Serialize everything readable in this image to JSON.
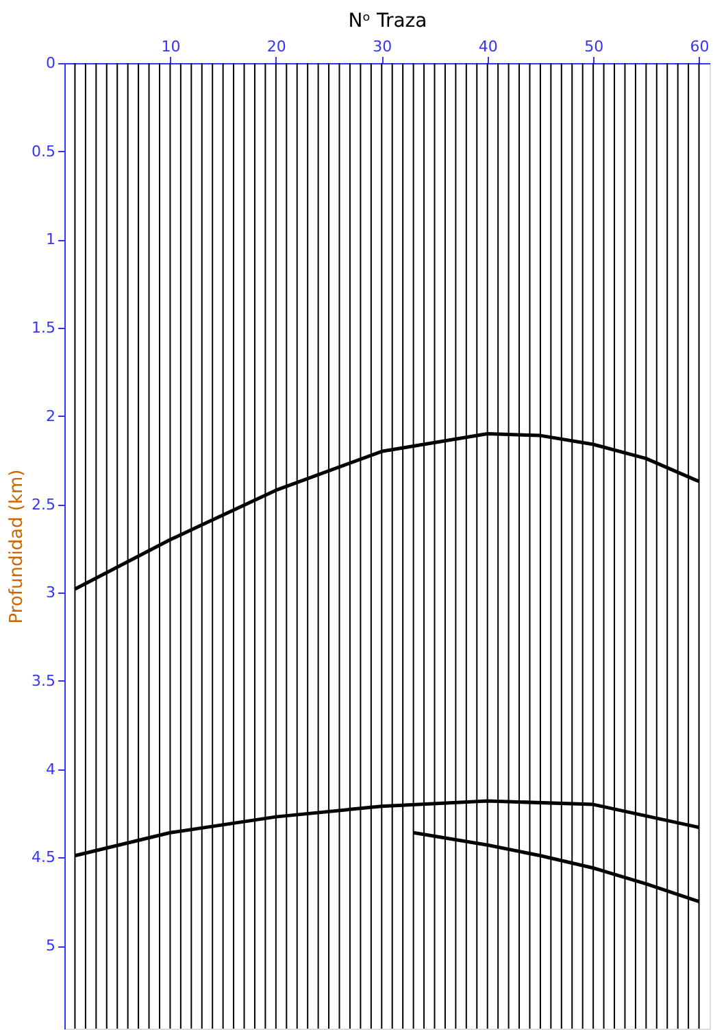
{
  "chart_data": {
    "type": "line",
    "xlabel": "Nᵒ Traza",
    "ylabel": "Profundidad (km)",
    "xlim": [
      0,
      61
    ],
    "xticks": [
      10,
      20,
      30,
      40,
      50,
      60
    ],
    "ylim": [
      5.47,
      0
    ],
    "yticks": [
      0,
      0.5,
      1,
      1.5,
      2,
      2.5,
      3,
      3.5,
      4,
      4.5,
      5
    ],
    "grid": false,
    "legend": false,
    "marker": "none",
    "line_style": "solid",
    "series": [
      {
        "color": "#000000",
        "x": [
          1,
          10,
          20,
          30,
          40,
          45,
          50,
          55,
          60
        ],
        "values": [
          2.98,
          2.7,
          2.42,
          2.2,
          2.1,
          2.11,
          2.16,
          2.24,
          2.37
        ]
      },
      {
        "color": "#000000",
        "x": [
          1,
          10,
          20,
          30,
          40,
          50,
          60
        ],
        "values": [
          4.49,
          4.36,
          4.27,
          4.21,
          4.18,
          4.2,
          4.33
        ]
      },
      {
        "color": "#000000",
        "x": [
          33,
          40,
          45,
          50,
          55,
          60
        ],
        "values": [
          4.36,
          4.43,
          4.49,
          4.56,
          4.65,
          4.75
        ]
      }
    ],
    "ref_lines": [
      {
        "axis": "x",
        "value": 1,
        "color": "#000000"
      },
      {
        "axis": "x",
        "value": 2,
        "color": "#000000"
      },
      {
        "axis": "x",
        "value": 3,
        "color": "#000000"
      },
      {
        "axis": "x",
        "value": 4,
        "color": "#000000"
      },
      {
        "axis": "x",
        "value": 5,
        "color": "#000000"
      },
      {
        "axis": "x",
        "value": 6,
        "color": "#000000"
      },
      {
        "axis": "x",
        "value": 7,
        "color": "#000000"
      },
      {
        "axis": "x",
        "value": 8,
        "color": "#000000"
      },
      {
        "axis": "x",
        "value": 9,
        "color": "#000000"
      },
      {
        "axis": "x",
        "value": 10,
        "color": "#000000"
      },
      {
        "axis": "x",
        "value": 11,
        "color": "#000000"
      },
      {
        "axis": "x",
        "value": 12,
        "color": "#000000"
      },
      {
        "axis": "x",
        "value": 13,
        "color": "#000000"
      },
      {
        "axis": "x",
        "value": 14,
        "color": "#000000"
      },
      {
        "axis": "x",
        "value": 15,
        "color": "#000000"
      },
      {
        "axis": "x",
        "value": 16,
        "color": "#000000"
      },
      {
        "axis": "x",
        "value": 17,
        "color": "#000000"
      },
      {
        "axis": "x",
        "value": 18,
        "color": "#000000"
      },
      {
        "axis": "x",
        "value": 19,
        "color": "#000000"
      },
      {
        "axis": "x",
        "value": 20,
        "color": "#000000"
      },
      {
        "axis": "x",
        "value": 21,
        "color": "#000000"
      },
      {
        "axis": "x",
        "value": 22,
        "color": "#000000"
      },
      {
        "axis": "x",
        "value": 23,
        "color": "#000000"
      },
      {
        "axis": "x",
        "value": 24,
        "color": "#000000"
      },
      {
        "axis": "x",
        "value": 25,
        "color": "#000000"
      },
      {
        "axis": "x",
        "value": 26,
        "color": "#000000"
      },
      {
        "axis": "x",
        "value": 27,
        "color": "#000000"
      },
      {
        "axis": "x",
        "value": 28,
        "color": "#000000"
      },
      {
        "axis": "x",
        "value": 29,
        "color": "#000000"
      },
      {
        "axis": "x",
        "value": 30,
        "color": "#000000"
      },
      {
        "axis": "x",
        "value": 31,
        "color": "#000000"
      },
      {
        "axis": "x",
        "value": 32,
        "color": "#000000"
      },
      {
        "axis": "x",
        "value": 33,
        "color": "#000000"
      },
      {
        "axis": "x",
        "value": 34,
        "color": "#000000"
      },
      {
        "axis": "x",
        "value": 35,
        "color": "#000000"
      },
      {
        "axis": "x",
        "value": 36,
        "color": "#000000"
      },
      {
        "axis": "x",
        "value": 37,
        "color": "#000000"
      },
      {
        "axis": "x",
        "value": 38,
        "color": "#000000"
      },
      {
        "axis": "x",
        "value": 39,
        "color": "#000000"
      },
      {
        "axis": "x",
        "value": 40,
        "color": "#000000"
      },
      {
        "axis": "x",
        "value": 41,
        "color": "#000000"
      },
      {
        "axis": "x",
        "value": 42,
        "color": "#000000"
      },
      {
        "axis": "x",
        "value": 43,
        "color": "#000000"
      },
      {
        "axis": "x",
        "value": 44,
        "color": "#000000"
      },
      {
        "axis": "x",
        "value": 45,
        "color": "#000000"
      },
      {
        "axis": "x",
        "value": 46,
        "color": "#000000"
      },
      {
        "axis": "x",
        "value": 47,
        "color": "#000000"
      },
      {
        "axis": "x",
        "value": 48,
        "color": "#000000"
      },
      {
        "axis": "x",
        "value": 49,
        "color": "#000000"
      },
      {
        "axis": "x",
        "value": 50,
        "color": "#000000"
      },
      {
        "axis": "x",
        "value": 51,
        "color": "#000000"
      },
      {
        "axis": "x",
        "value": 52,
        "color": "#000000"
      },
      {
        "axis": "x",
        "value": 53,
        "color": "#000000"
      },
      {
        "axis": "x",
        "value": 54,
        "color": "#000000"
      },
      {
        "axis": "x",
        "value": 55,
        "color": "#000000"
      },
      {
        "axis": "x",
        "value": 56,
        "color": "#000000"
      },
      {
        "axis": "x",
        "value": 57,
        "color": "#000000"
      },
      {
        "axis": "x",
        "value": 58,
        "color": "#000000"
      },
      {
        "axis": "x",
        "value": 59,
        "color": "#000000"
      },
      {
        "axis": "x",
        "value": 60,
        "color": "#000000"
      }
    ]
  }
}
